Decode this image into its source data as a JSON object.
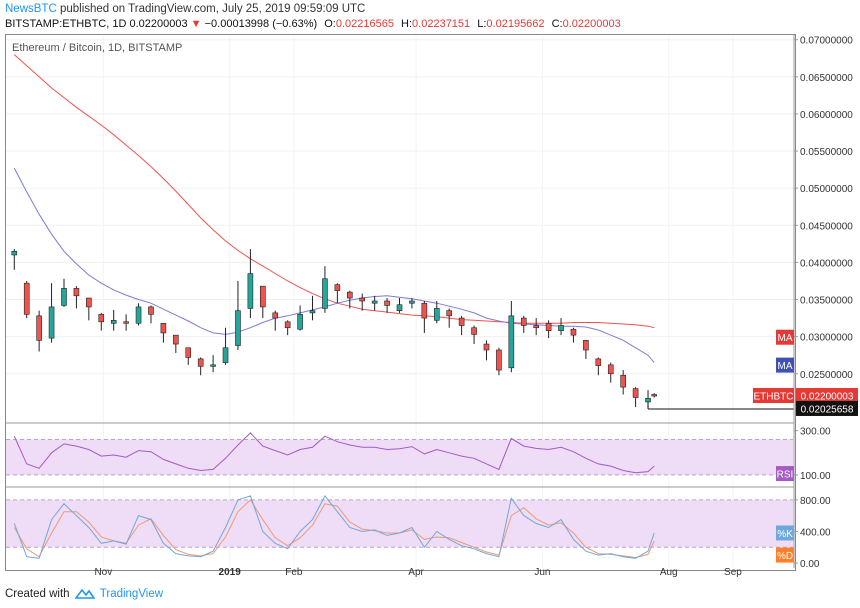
{
  "header": {
    "author": "NewsBTC",
    "published_text": "published on TradingView.com, July 25, 2019 09:59:09 UTC",
    "symbol_line": "BITSTAMP:ETHBTC, 1D",
    "last_price": "0.02200003",
    "change": "−0.00013998 (−0.63%)",
    "ohlc": {
      "o_label": "O:",
      "o": "0.02216565",
      "h_label": "H:",
      "h": "0.02237151",
      "l_label": "L:",
      "l": "0.02195662",
      "c_label": "C:",
      "c": "0.02200003"
    }
  },
  "legend_title": "Ethereum / Bitcoin, 1D, BITSTAMP",
  "footer": {
    "created_with": "Created with",
    "brand": "TradingView"
  },
  "colors": {
    "up": "#26a69a",
    "down": "#ef5350",
    "ma_fast": "#7d7cd3",
    "ma_slow": "#f0524e",
    "rsi": "#a45bc2",
    "stoch_k": "#6fa8dc",
    "stoch_d": "#ef9a73",
    "band_fill": "#efdcf7",
    "badge_red": "#e53935",
    "badge_blue": "#3f51b5"
  },
  "chart_data": [
    {
      "type": "candlestick",
      "title": "Ethereum / Bitcoin, 1D, BITSTAMP",
      "x_ticks": [
        "Nov",
        "2019",
        "Feb",
        "Apr",
        "Jun",
        "Aug",
        "Sep"
      ],
      "y_ticks": [
        "0.07000000",
        "0.06500000",
        "0.06000000",
        "0.05500000",
        "0.05000000",
        "0.04500000",
        "0.04000000",
        "0.03500000",
        "0.03000000",
        "0.02500000"
      ],
      "ylim": [
        0.0185,
        0.0705
      ],
      "x": [
        "2018-09-19",
        "2018-09-25",
        "2018-10-01",
        "2018-10-07",
        "2018-10-13",
        "2018-10-19",
        "2018-10-25",
        "2018-10-31",
        "2018-11-06",
        "2018-11-12",
        "2018-11-18",
        "2018-11-24",
        "2018-11-30",
        "2018-12-06",
        "2018-12-12",
        "2018-12-18",
        "2018-12-24",
        "2018-12-30",
        "2019-01-05",
        "2019-01-11",
        "2019-01-17",
        "2019-01-23",
        "2019-01-29",
        "2019-02-04",
        "2019-02-10",
        "2019-02-16",
        "2019-02-22",
        "2019-02-28",
        "2019-03-06",
        "2019-03-12",
        "2019-03-18",
        "2019-03-24",
        "2019-03-30",
        "2019-04-05",
        "2019-04-11",
        "2019-04-17",
        "2019-04-23",
        "2019-04-29",
        "2019-05-05",
        "2019-05-11",
        "2019-05-17",
        "2019-05-23",
        "2019-05-29",
        "2019-06-04",
        "2019-06-10",
        "2019-06-16",
        "2019-06-22",
        "2019-06-28",
        "2019-07-04",
        "2019-07-10",
        "2019-07-16",
        "2019-07-22",
        "2019-07-25"
      ],
      "close": [
        0.0415,
        0.033,
        0.0295,
        0.034,
        0.0365,
        0.0355,
        0.034,
        0.032,
        0.0322,
        0.0318,
        0.034,
        0.033,
        0.0305,
        0.029,
        0.0272,
        0.026,
        0.0262,
        0.0285,
        0.0335,
        0.0385,
        0.034,
        0.0325,
        0.0312,
        0.033,
        0.0335,
        0.0378,
        0.0362,
        0.0352,
        0.0348,
        0.0348,
        0.0342,
        0.0343,
        0.0348,
        0.0325,
        0.0338,
        0.0328,
        0.0315,
        0.0303,
        0.0282,
        0.0255,
        0.0328,
        0.0315,
        0.0312,
        0.0308,
        0.0315,
        0.0302,
        0.0282,
        0.0261,
        0.025,
        0.0232,
        0.0218,
        0.0217,
        0.022
      ],
      "high": [
        0.0418,
        0.0375,
        0.0335,
        0.0372,
        0.0378,
        0.0368,
        0.0352,
        0.0332,
        0.0336,
        0.033,
        0.0345,
        0.0342,
        0.0318,
        0.0302,
        0.0285,
        0.0272,
        0.0275,
        0.0312,
        0.0375,
        0.0418,
        0.0368,
        0.0335,
        0.0322,
        0.0342,
        0.0355,
        0.0395,
        0.0372,
        0.0362,
        0.0358,
        0.0355,
        0.0352,
        0.0352,
        0.0352,
        0.0348,
        0.0348,
        0.0338,
        0.0328,
        0.0315,
        0.0295,
        0.0285,
        0.0348,
        0.0328,
        0.0325,
        0.0322,
        0.0325,
        0.0312,
        0.0295,
        0.0272,
        0.0265,
        0.0255,
        0.0232,
        0.0228,
        0.0224
      ],
      "low": [
        0.039,
        0.0325,
        0.028,
        0.0292,
        0.034,
        0.0338,
        0.0322,
        0.0308,
        0.0308,
        0.0308,
        0.0315,
        0.0318,
        0.0292,
        0.0278,
        0.0262,
        0.0248,
        0.0252,
        0.0262,
        0.0282,
        0.0325,
        0.0325,
        0.0308,
        0.0302,
        0.0308,
        0.0322,
        0.0332,
        0.0345,
        0.0338,
        0.0335,
        0.0335,
        0.0332,
        0.0332,
        0.0338,
        0.0305,
        0.0318,
        0.0312,
        0.0302,
        0.029,
        0.0268,
        0.0248,
        0.0252,
        0.0305,
        0.0302,
        0.0298,
        0.0302,
        0.0292,
        0.027,
        0.0248,
        0.0238,
        0.0222,
        0.0205,
        0.0203,
        0.0218
      ],
      "open": [
        0.041,
        0.0372,
        0.0328,
        0.0298,
        0.0342,
        0.0365,
        0.0352,
        0.033,
        0.0318,
        0.032,
        0.0318,
        0.034,
        0.0318,
        0.0302,
        0.0285,
        0.027,
        0.026,
        0.0265,
        0.0288,
        0.0338,
        0.0368,
        0.0332,
        0.032,
        0.031,
        0.0332,
        0.0338,
        0.037,
        0.036,
        0.0352,
        0.0345,
        0.0348,
        0.0335,
        0.0345,
        0.0345,
        0.0322,
        0.0335,
        0.0325,
        0.0312,
        0.029,
        0.0282,
        0.0258,
        0.0325,
        0.0315,
        0.0318,
        0.0308,
        0.031,
        0.0295,
        0.027,
        0.0262,
        0.0248,
        0.023,
        0.0212,
        0.0222
      ],
      "series": [
        {
          "name": "MA",
          "values": [
            0.0527,
            0.0495,
            0.0465,
            0.0438,
            0.0415,
            0.0398,
            0.0383,
            0.0372,
            0.0363,
            0.0356,
            0.035,
            0.0345,
            0.0337,
            0.0329,
            0.0321,
            0.0312,
            0.0305,
            0.0303,
            0.0306,
            0.0312,
            0.0319,
            0.0325,
            0.0328,
            0.0332,
            0.0336,
            0.034,
            0.0345,
            0.0349,
            0.0352,
            0.0354,
            0.0355,
            0.0353,
            0.0351,
            0.0348,
            0.0345,
            0.0341,
            0.0337,
            0.0332,
            0.0325,
            0.0321,
            0.0318,
            0.0317,
            0.0316,
            0.0315,
            0.0314,
            0.0314,
            0.0313,
            0.0309,
            0.0302,
            0.0295,
            0.0285,
            0.0275,
            0.0265
          ]
        },
        {
          "name": "MA",
          "values": [
            0.068,
            0.0665,
            0.065,
            0.0635,
            0.0622,
            0.0609,
            0.0597,
            0.0585,
            0.0572,
            0.0558,
            0.0544,
            0.0529,
            0.0513,
            0.0496,
            0.0478,
            0.046,
            0.0444,
            0.0429,
            0.0416,
            0.0405,
            0.0395,
            0.0385,
            0.0375,
            0.0366,
            0.0358,
            0.0351,
            0.0345,
            0.0341,
            0.0337,
            0.0335,
            0.0333,
            0.0331,
            0.0329,
            0.0328,
            0.0327,
            0.0325,
            0.0323,
            0.0322,
            0.0321,
            0.032,
            0.0319,
            0.0318,
            0.0318,
            0.0318,
            0.0318,
            0.0319,
            0.0319,
            0.0319,
            0.0318,
            0.0317,
            0.0316,
            0.0314,
            0.0312
          ]
        }
      ],
      "price_labels": {
        "last_label": "ETHBTC",
        "last": "0.02200003",
        "crosshair": "0.02025658",
        "ma_fast_label": "MA",
        "ma_slow_label": "MA"
      }
    },
    {
      "type": "line",
      "series": [
        {
          "name": "RSI",
          "values": [
            275,
            150,
            130,
            200,
            240,
            230,
            215,
            185,
            190,
            180,
            210,
            205,
            170,
            150,
            130,
            120,
            125,
            175,
            235,
            290,
            230,
            210,
            190,
            215,
            225,
            275,
            250,
            235,
            225,
            225,
            215,
            218,
            228,
            195,
            215,
            200,
            185,
            175,
            150,
            125,
            265,
            230,
            220,
            215,
            225,
            205,
            175,
            150,
            140,
            120,
            110,
            115,
            140
          ]
        }
      ],
      "y_ticks": [
        "300.00",
        "100.00"
      ],
      "ylim": [
        50,
        330
      ],
      "label": "RSI"
    },
    {
      "type": "line",
      "series": [
        {
          "name": "%K",
          "values": [
            500,
            80,
            60,
            550,
            750,
            600,
            450,
            250,
            280,
            240,
            600,
            550,
            250,
            120,
            90,
            80,
            150,
            450,
            800,
            850,
            400,
            250,
            180,
            400,
            550,
            850,
            650,
            450,
            400,
            420,
            350,
            380,
            450,
            200,
            400,
            300,
            220,
            180,
            120,
            80,
            820,
            600,
            500,
            450,
            550,
            300,
            150,
            100,
            120,
            80,
            60,
            150,
            380
          ]
        },
        {
          "name": "%D",
          "values": [
            450,
            180,
            80,
            380,
            650,
            650,
            520,
            330,
            280,
            250,
            480,
            560,
            350,
            170,
            110,
            90,
            120,
            330,
            650,
            800,
            550,
            320,
            220,
            320,
            480,
            750,
            720,
            520,
            430,
            410,
            380,
            380,
            420,
            300,
            330,
            320,
            260,
            200,
            140,
            100,
            600,
            700,
            560,
            480,
            510,
            380,
            200,
            120,
            110,
            90,
            70,
            110,
            280
          ]
        }
      ],
      "y_ticks": [
        "800.00",
        "400.00",
        "0.00"
      ],
      "ylim": [
        -50,
        950
      ],
      "labels": {
        "k": "%K",
        "d": "%D"
      }
    }
  ]
}
